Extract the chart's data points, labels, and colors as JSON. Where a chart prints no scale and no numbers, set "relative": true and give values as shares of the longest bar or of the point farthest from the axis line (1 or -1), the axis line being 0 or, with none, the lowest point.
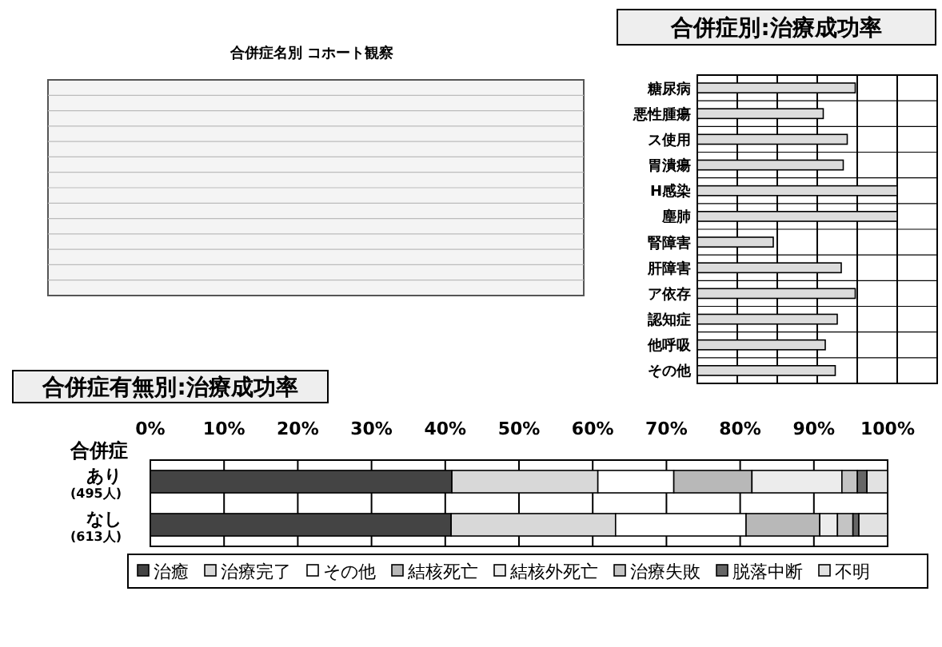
{
  "chart_data": [
    {
      "type": "bar",
      "title": "合併症別:治療成功率",
      "orientation": "horizontal",
      "relative": true,
      "grid": true,
      "categories": [
        "糖尿病",
        "悪性腫瘍",
        "ス使用",
        "胃潰瘍",
        "H感染",
        "塵肺",
        "腎障害",
        "肝障害",
        "ア依存",
        "認知症",
        "他呼吸",
        "その他"
      ],
      "color": "#dcdcdc",
      "values": [
        0.79,
        0.63,
        0.75,
        0.73,
        1,
        1,
        0.38,
        0.72,
        0.79,
        0.7,
        0.64,
        0.69
      ]
    },
    {
      "type": "other",
      "annotations": [
        "合併症名別 コホート観察"
      ]
    },
    {
      "type": "bar",
      "title": "合併症有無別:治療成功率",
      "orientation": "horizontal",
      "stacked": true,
      "ylabel": "合併症",
      "grid": "x",
      "legend": "bottom",
      "categories": [
        "あり\n(495人)",
        "なし\n(613人)"
      ],
      "xlim": [
        0,
        100
      ],
      "xticks": [
        {
          "value": 0,
          "label": "0%"
        },
        {
          "value": 10,
          "label": "10%"
        },
        {
          "value": 20,
          "label": "20%"
        },
        {
          "value": 30,
          "label": "30%"
        },
        {
          "value": 40,
          "label": "40%"
        },
        {
          "value": 50,
          "label": "50%"
        },
        {
          "value": 60,
          "label": "60%"
        },
        {
          "value": 70,
          "label": "70%"
        },
        {
          "value": 80,
          "label": "80%"
        },
        {
          "value": 90,
          "label": "90%"
        },
        {
          "value": 100,
          "label": "100%"
        }
      ],
      "series": [
        {
          "name": "治癒",
          "color": "#444444",
          "values": [
            40.9,
            40.8
          ]
        },
        {
          "name": "治療完了",
          "color": "#d8d8d8",
          "values": [
            19.8,
            22.3
          ]
        },
        {
          "name": "その他",
          "color": "#ffffff",
          "values": [
            10.3,
            17.7
          ]
        },
        {
          "name": "結核死亡",
          "color": "#b8b8b8",
          "values": [
            10.6,
            10.0
          ]
        },
        {
          "name": "結核外死亡",
          "color": "#ececec",
          "values": [
            12.2,
            2.4
          ]
        },
        {
          "name": "治療失敗",
          "color": "#c4c4c4",
          "values": [
            2.1,
            2.1
          ]
        },
        {
          "name": "脱落中断",
          "color": "#666666",
          "values": [
            1.3,
            0.8
          ]
        },
        {
          "name": "不明",
          "color": "#e2e2e2",
          "values": [
            2.8,
            3.9
          ]
        }
      ]
    }
  ]
}
